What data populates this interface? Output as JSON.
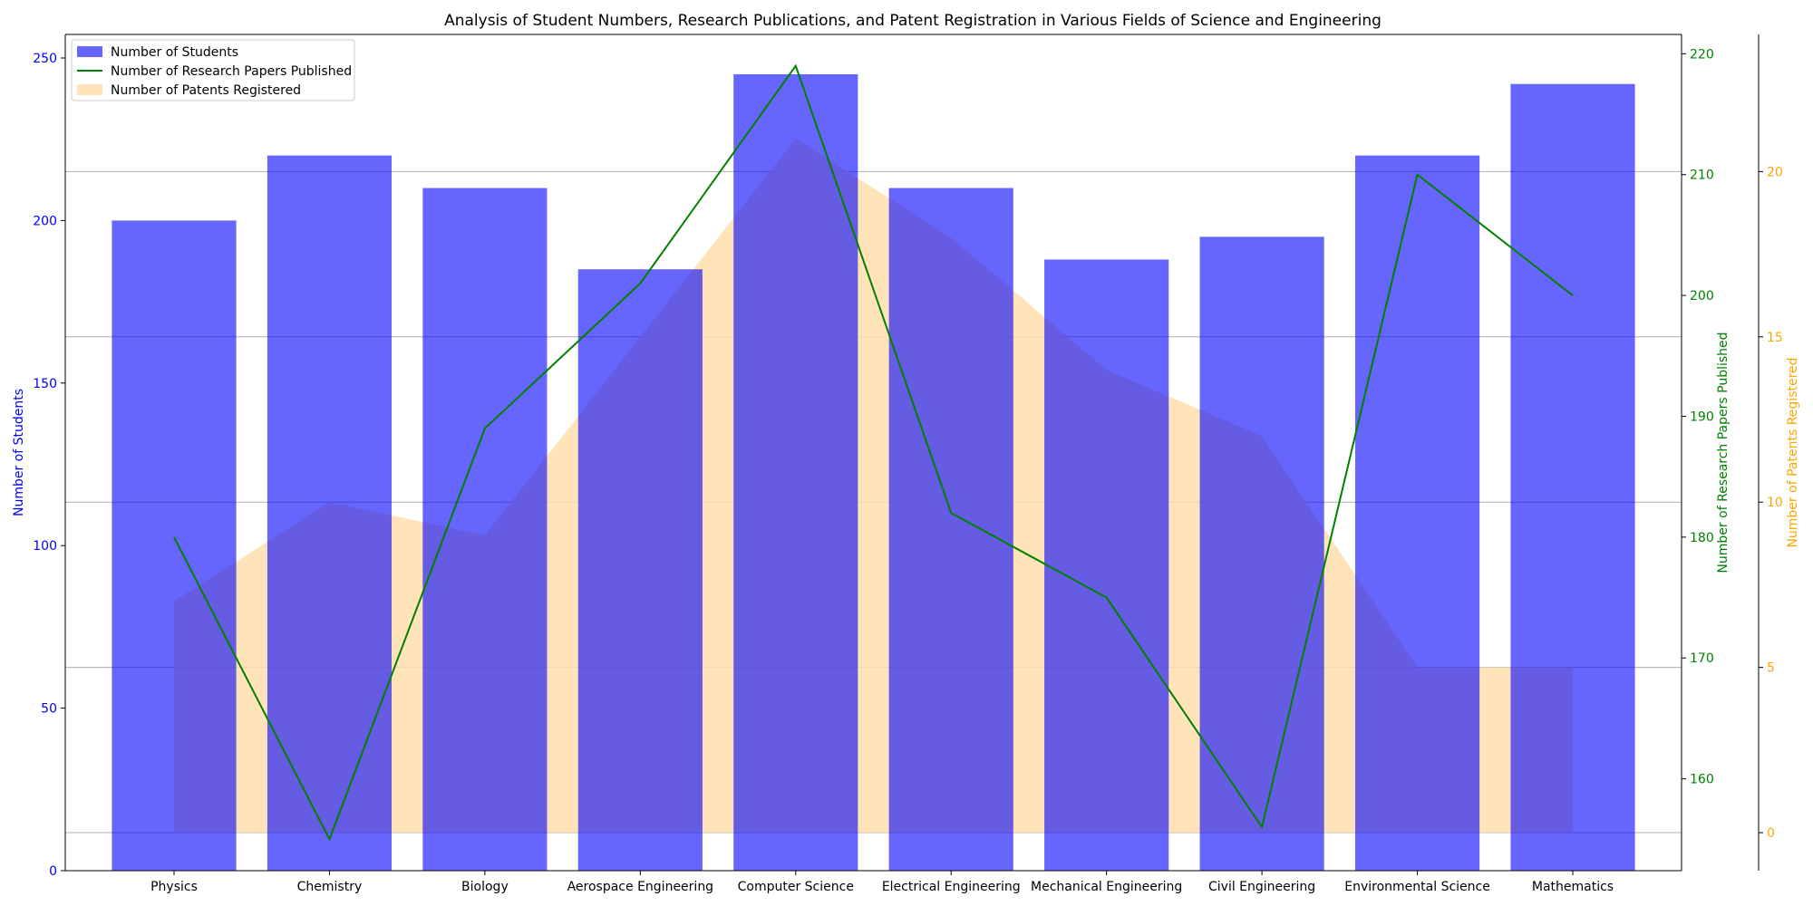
{
  "chart_data": {
    "type": "bar",
    "title": "Analysis of Student Numbers, Research Publications, and Patent Registration in Various Fields of Science and Engineering",
    "categories": [
      "Physics",
      "Chemistry",
      "Biology",
      "Aerospace Engineering",
      "Computer Science",
      "Electrical Engineering",
      "Mechanical Engineering",
      "Civil Engineering",
      "Environmental Science",
      "Mathematics"
    ],
    "series": [
      {
        "name": "Number of Students",
        "kind": "bar",
        "axis": "left",
        "color": "#6666ff",
        "values": [
          200,
          220,
          210,
          185,
          245,
          210,
          188,
          195,
          220,
          242
        ]
      },
      {
        "name": "Number of Research Papers Published",
        "kind": "line",
        "axis": "right1",
        "color": "#008000",
        "values": [
          180,
          155,
          189,
          201,
          219,
          182,
          175,
          156,
          210,
          200
        ]
      },
      {
        "name": "Number of Patents Registered",
        "kind": "area",
        "axis": "right2",
        "color": "#ffdead",
        "values": [
          7,
          10,
          9,
          15,
          21,
          18,
          14,
          12,
          5,
          5
        ]
      }
    ],
    "axes": {
      "left": {
        "label": "Number of Students",
        "color": "#0000ff",
        "ylim": [
          0,
          257.25
        ],
        "ticks": [
          "0",
          "50",
          "100",
          "150",
          "200",
          "250"
        ]
      },
      "right1": {
        "label": "Number of Research Papers Published",
        "color": "#008000",
        "ylim": [
          152.4,
          221.6
        ],
        "ticks": [
          "160",
          "170",
          "180",
          "190",
          "200",
          "210",
          "220"
        ]
      },
      "right2": {
        "label": "Number of Patents Registered",
        "color": "#ffa500",
        "ylim": [
          -1.15,
          24.15
        ],
        "ticks": [
          "0",
          "5",
          "10",
          "15",
          "20"
        ]
      }
    },
    "grid": "horizontal (patents axis)",
    "legend_position": "upper-left"
  }
}
